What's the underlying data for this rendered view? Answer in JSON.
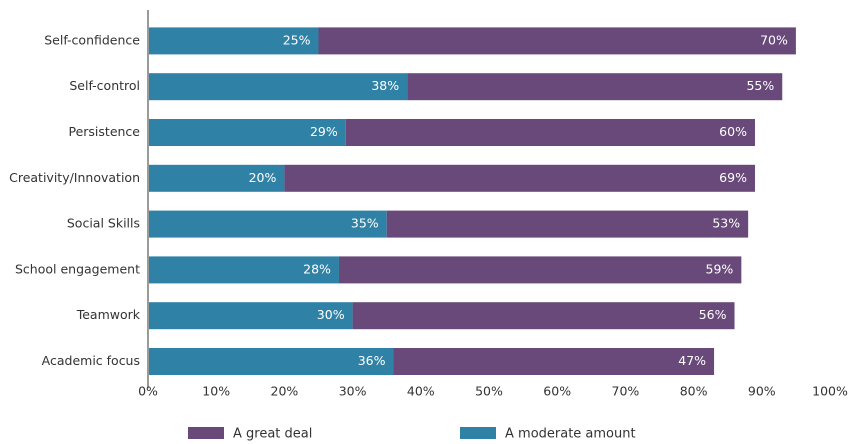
{
  "chart_data": {
    "type": "bar",
    "orientation": "horizontal",
    "stacked": true,
    "categories": [
      "Self-confidence",
      "Self-control",
      "Persistence",
      "Creativity/Innovation",
      "Social Skills",
      "School engagement",
      "Teamwork",
      "Academic focus"
    ],
    "series": [
      {
        "name": "A moderate amount",
        "color": "#2f82a6",
        "values": [
          25,
          38,
          29,
          20,
          35,
          28,
          30,
          36
        ]
      },
      {
        "name": "A great deal",
        "color": "#68497a",
        "values": [
          70,
          55,
          60,
          69,
          53,
          59,
          56,
          47
        ]
      }
    ],
    "value_suffix": "%",
    "xlim": [
      0,
      100
    ],
    "xticks": [
      "0%",
      "10%",
      "20%",
      "30%",
      "40%",
      "50%",
      "60%",
      "70%",
      "80%",
      "90%",
      "100%"
    ],
    "grid": false,
    "legend": {
      "placement": "bottom",
      "order": [
        "A great deal",
        "A moderate amount"
      ]
    }
  }
}
